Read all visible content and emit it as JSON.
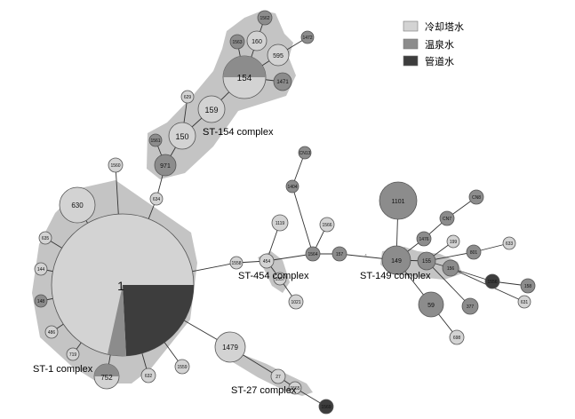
{
  "colors": {
    "cooling_tower": "#d3d3d3",
    "hot_spring": "#8c8c8c",
    "pipe": "#3d3d3d",
    "complex_fill": "#c4c4c4",
    "node_stroke": "#555555"
  },
  "legend": [
    {
      "label": "冷却塔水",
      "color": "#d3d3d3"
    },
    {
      "label": "温泉水",
      "color": "#8c8c8c"
    },
    {
      "label": "管道水",
      "color": "#3d3d3d"
    }
  ],
  "complexes": {
    "st1": "ST-1 complex",
    "st154": "ST-154 complex",
    "st454": "ST-454 complex",
    "st149": "ST-149 complex",
    "st27": "ST-27 complex"
  },
  "nodes": {
    "n1": "1",
    "n630": "630",
    "n635": "635",
    "n144": "144",
    "n148": "148",
    "n486": "486",
    "n719": "719",
    "n752": "752",
    "n632": "632",
    "n1559": "1559",
    "n634": "634",
    "n1560": "1560",
    "n971": "971",
    "n1561": "1561",
    "n150": "150",
    "n629": "629",
    "n159": "159",
    "n154": "154",
    "n1471": "1471",
    "n595": "595",
    "n160": "160",
    "n1563": "1563",
    "n1562": "1562",
    "n1472": "1472",
    "n1558": "1558",
    "n454": "454",
    "n1557": "1557",
    "n1021": "1021",
    "n1119": "1119",
    "n1404": "1404",
    "nCN13": "CN13",
    "n1566": "1566",
    "n1564": "1564",
    "n157": "157",
    "n149": "149",
    "n1101": "1101",
    "n1476": "1476",
    "nCN7": "CN7",
    "nCN8": "CN8",
    "n155": "155",
    "n199": "199",
    "n633": "633",
    "n801": "801",
    "n156": "156",
    "n1556": "1556",
    "n158": "158",
    "n631": "631",
    "n59": "59",
    "n377": "377",
    "n698": "698",
    "n1479": "1479",
    "n27": "27",
    "n1565": "1565",
    "n1569": "1569"
  },
  "edge_label": "4"
}
